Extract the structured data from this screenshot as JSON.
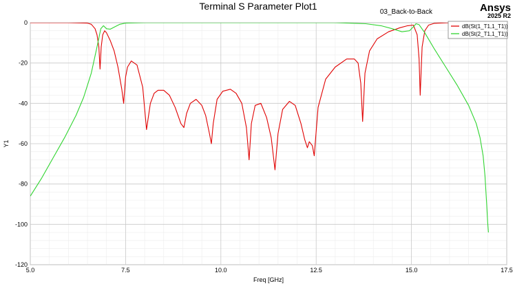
{
  "header": {
    "project": "03_Back-to-Back",
    "brand": "Ansys",
    "version": "2025 R2"
  },
  "chart_data": {
    "type": "line",
    "title": "Terminal S Parameter Plot1",
    "xlabel": "Freq [GHz]",
    "ylabel": "Y1",
    "xlim": [
      5.0,
      17.5
    ],
    "ylim": [
      -120,
      0
    ],
    "xticks": [
      5.0,
      7.5,
      10.0,
      12.5,
      15.0,
      17.5
    ],
    "xtick_labels": [
      "5.0",
      "7.5",
      "10.0",
      "12.5",
      "15.0",
      "17.5"
    ],
    "yticks": [
      0,
      -20,
      -40,
      -60,
      -80,
      -100,
      -120
    ],
    "ytick_labels": [
      "0",
      "-20",
      "-40",
      "-60",
      "-80",
      "-100",
      "-120"
    ],
    "grid": true,
    "legend_position": "top-right",
    "series": [
      {
        "name": "dB(St(1_T1,1_T1))",
        "color": "#e00000",
        "x": [
          5.0,
          6.0,
          6.5,
          6.6,
          6.7,
          6.75,
          6.8,
          6.83,
          6.86,
          6.9,
          6.95,
          7.0,
          7.1,
          7.2,
          7.3,
          7.4,
          7.45,
          7.5,
          7.55,
          7.65,
          7.8,
          7.95,
          8.05,
          8.15,
          8.25,
          8.35,
          8.5,
          8.65,
          8.8,
          8.95,
          9.03,
          9.1,
          9.2,
          9.35,
          9.5,
          9.6,
          9.7,
          9.75,
          9.8,
          9.9,
          10.05,
          10.25,
          10.4,
          10.55,
          10.67,
          10.74,
          10.8,
          10.9,
          11.05,
          11.2,
          11.32,
          11.42,
          11.5,
          11.62,
          11.8,
          11.95,
          12.1,
          12.2,
          12.27,
          12.32,
          12.4,
          12.45,
          12.55,
          12.75,
          13.0,
          13.3,
          13.5,
          13.6,
          13.67,
          13.72,
          13.78,
          13.9,
          14.1,
          14.4,
          14.7,
          14.9,
          15.05,
          15.15,
          15.2,
          15.23,
          15.28,
          15.35,
          15.45,
          15.6,
          16.0,
          16.5,
          17.5
        ],
        "y": [
          0,
          0,
          -0.2,
          -0.8,
          -3,
          -6,
          -12,
          -23,
          -12,
          -6,
          -4,
          -5,
          -9,
          -14,
          -22,
          -33,
          -40,
          -27,
          -22,
          -19,
          -21,
          -32,
          -53,
          -40,
          -35,
          -33.5,
          -33.5,
          -36,
          -42,
          -50,
          -52,
          -45,
          -40,
          -38,
          -41,
          -46,
          -55,
          -60,
          -50,
          -38,
          -34,
          -33,
          -35,
          -40,
          -52,
          -68,
          -50,
          -41,
          -40,
          -47,
          -57,
          -73,
          -55,
          -43,
          -39,
          -41,
          -50,
          -58,
          -62,
          -59,
          -61,
          -66,
          -42,
          -28,
          -22,
          -18,
          -18,
          -20,
          -30,
          -49,
          -25,
          -14,
          -8,
          -4.5,
          -2.5,
          -1.5,
          -1.2,
          -6,
          -18,
          -36,
          -12,
          -4,
          -1.2,
          -0.3,
          0,
          0,
          0
        ]
      },
      {
        "name": "dB(St(2_T1,1_T1))",
        "color": "#2fd42f",
        "x": [
          5.0,
          5.3,
          5.6,
          5.9,
          6.2,
          6.4,
          6.6,
          6.75,
          6.85,
          6.92,
          7.0,
          7.1,
          7.2,
          7.35,
          7.5,
          8.0,
          10.0,
          13.0,
          13.8,
          14.2,
          14.5,
          14.75,
          14.95,
          15.05,
          15.1,
          15.12,
          15.2,
          15.35,
          15.6,
          15.9,
          16.2,
          16.5,
          16.7,
          16.8,
          16.88,
          16.93,
          16.97,
          17.0,
          17.02
        ],
        "y": [
          -86,
          -77,
          -67,
          -57,
          -46,
          -37,
          -25,
          -12,
          -3,
          -1.5,
          -3,
          -3.2,
          -2.2,
          -0.8,
          -0.2,
          0,
          0,
          0,
          -0.5,
          -1.5,
          -3,
          -4.5,
          -4,
          -2,
          -1,
          -0.5,
          -1,
          -5,
          -13,
          -22,
          -31,
          -41,
          -50,
          -57,
          -66,
          -76,
          -89,
          -99,
          -104
        ]
      }
    ]
  }
}
